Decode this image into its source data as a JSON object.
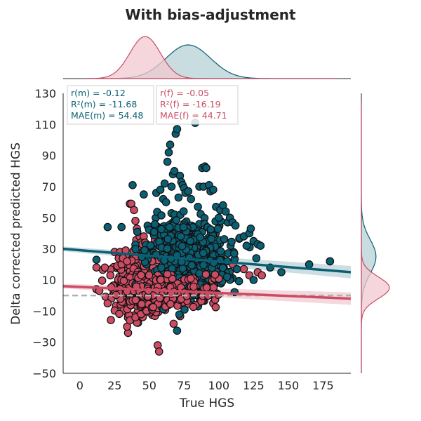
{
  "title": "With bias-adjustment",
  "colors": {
    "male": "#0a5f73",
    "female": "#cc4c64",
    "male_fill": "#b7d0d6",
    "female_fill": "#f0c8d0",
    "reference": "#b0b0b0"
  },
  "stats": {
    "male": {
      "r": "r(m) = -0.12",
      "r2": "R²(m) = -11.68",
      "mae": "MAE(m) = 54.48"
    },
    "female": {
      "r": "r(f) = -0.05",
      "r2": "R²(f) = -16.19",
      "mae": "MAE(f) = 44.71"
    }
  },
  "chart_data": {
    "type": "scatter",
    "title": "With bias-adjustment",
    "xlabel": "True HGS",
    "ylabel": "Delta corrected predicted HGS",
    "xlim": [
      -12,
      195
    ],
    "ylim": [
      -50,
      130
    ],
    "xticks": [
      0,
      25,
      50,
      75,
      100,
      125,
      150,
      175
    ],
    "yticks": [
      -50,
      -30,
      -10,
      10,
      30,
      50,
      70,
      90,
      110,
      130
    ],
    "xtick_labels": [
      "0",
      "25",
      "50",
      "75",
      "100",
      "125",
      "150",
      "175"
    ],
    "ytick_labels": [
      "−50",
      "−30",
      "−10",
      "10",
      "30",
      "50",
      "70",
      "90",
      "110",
      "130"
    ],
    "grid": false,
    "reference_line_y": 0,
    "series": [
      {
        "key": "male",
        "cloud": {
          "x_mean": 78,
          "x_sd": 14,
          "y_mean": 25,
          "y_sd": 12,
          "slope": -0.08,
          "n": 650,
          "x_min": 40,
          "x_max": 130
        },
        "points": [
          [
            12,
            23
          ],
          [
            20,
            44
          ],
          [
            30,
            44
          ],
          [
            38,
            71
          ],
          [
            46,
            65
          ],
          [
            55,
            66
          ],
          [
            58,
            68
          ],
          [
            60,
            62
          ],
          [
            61,
            72
          ],
          [
            62,
            60
          ],
          [
            63,
            86
          ],
          [
            64,
            92
          ],
          [
            65,
            97
          ],
          [
            66,
            70
          ],
          [
            67,
            78
          ],
          [
            68,
            80
          ],
          [
            69,
            104
          ],
          [
            70,
            107
          ],
          [
            71,
            63
          ],
          [
            72,
            77
          ],
          [
            73,
            73
          ],
          [
            74,
            71
          ],
          [
            75,
            69
          ],
          [
            76,
            66
          ],
          [
            78,
            67
          ],
          [
            80,
            62
          ],
          [
            83,
            111
          ],
          [
            85,
            57
          ],
          [
            86,
            70
          ],
          [
            88,
            82
          ],
          [
            89,
            70
          ],
          [
            90,
            83
          ],
          [
            91,
            82
          ],
          [
            93,
            71
          ],
          [
            94,
            67
          ],
          [
            96,
            68
          ],
          [
            98,
            57
          ],
          [
            100,
            50
          ],
          [
            101,
            55
          ],
          [
            103,
            58
          ],
          [
            105,
            54
          ],
          [
            108,
            50
          ],
          [
            110,
            47
          ],
          [
            112,
            45
          ],
          [
            115,
            37
          ],
          [
            118,
            38
          ],
          [
            120,
            32
          ],
          [
            122,
            40
          ],
          [
            123,
            43
          ],
          [
            125,
            35
          ],
          [
            128,
            33
          ],
          [
            130,
            32
          ],
          [
            127,
            24
          ],
          [
            125,
            10
          ],
          [
            137,
            18
          ],
          [
            145,
            15
          ],
          [
            165,
            20
          ],
          [
            180,
            22
          ],
          [
            113,
            17
          ],
          [
            106,
            12
          ]
        ],
        "regression": {
          "x": [
            -12,
            195
          ],
          "y": [
            30,
            15
          ]
        }
      },
      {
        "key": "female",
        "cloud": {
          "x_mean": 45,
          "x_sd": 10,
          "y_mean": 6,
          "y_sd": 9,
          "slope": -0.05,
          "n": 500,
          "x_min": 12,
          "x_max": 90
        },
        "points": [
          [
            12,
            4
          ],
          [
            14,
            3
          ],
          [
            18,
            18
          ],
          [
            20,
            -5
          ],
          [
            22,
            13
          ],
          [
            25,
            28
          ],
          [
            27,
            19
          ],
          [
            28,
            24
          ],
          [
            29,
            28
          ],
          [
            30,
            20
          ],
          [
            31,
            24
          ],
          [
            33,
            29
          ],
          [
            34,
            22
          ],
          [
            36,
            59
          ],
          [
            37,
            59
          ],
          [
            39,
            55
          ],
          [
            40,
            48
          ],
          [
            41,
            43
          ],
          [
            43,
            38
          ],
          [
            44,
            34
          ],
          [
            45,
            33
          ],
          [
            46,
            38
          ],
          [
            47,
            34
          ],
          [
            48,
            23
          ],
          [
            50,
            30
          ],
          [
            51,
            31
          ],
          [
            52,
            22
          ],
          [
            54,
            36
          ],
          [
            56,
            -32
          ],
          [
            57,
            -36
          ],
          [
            34,
            -20
          ],
          [
            36,
            -16
          ],
          [
            40,
            -14
          ],
          [
            44,
            -12
          ],
          [
            48,
            -10
          ],
          [
            52,
            -9
          ],
          [
            56,
            -8
          ],
          [
            60,
            -7
          ],
          [
            64,
            -6
          ],
          [
            68,
            -4
          ],
          [
            75,
            2
          ],
          [
            82,
            5
          ],
          [
            85,
            7
          ],
          [
            90,
            13
          ],
          [
            95,
            17
          ],
          [
            100,
            13
          ],
          [
            104,
            14
          ],
          [
            110,
            20
          ],
          [
            118,
            17
          ],
          [
            122,
            13
          ],
          [
            128,
            15
          ],
          [
            131,
            13
          ],
          [
            180,
            22
          ]
        ],
        "regression": {
          "x": [
            -12,
            195
          ],
          "y": [
            6,
            -2
          ]
        }
      }
    ],
    "marginal_x": {
      "male": {
        "mean": 78,
        "sd": 16,
        "peak": 0.8
      },
      "female": {
        "mean": 47,
        "sd": 11,
        "peak": 1.0
      }
    },
    "marginal_y": {
      "male": {
        "mean": 25,
        "sd": 11,
        "peak": 0.52
      },
      "female": {
        "mean": 5,
        "sd": 7,
        "peak": 1.0
      }
    }
  }
}
